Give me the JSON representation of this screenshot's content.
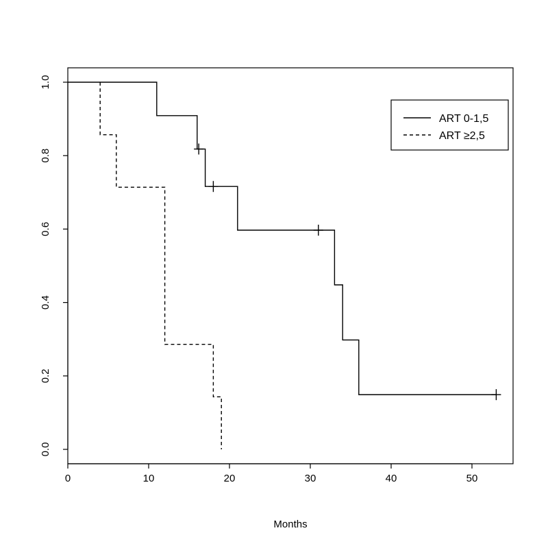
{
  "chart_data": {
    "type": "line",
    "subtype": "kaplan-meier step",
    "title": "",
    "xlabel": "Months",
    "ylabel": "",
    "xlim": [
      0,
      55
    ],
    "ylim": [
      -0.04,
      1.04
    ],
    "x_ticks": [
      0,
      10,
      20,
      30,
      40,
      50
    ],
    "y_ticks": [
      0.0,
      0.2,
      0.4,
      0.6,
      0.8,
      1.0
    ],
    "x_tick_labels": [
      "0",
      "10",
      "20",
      "30",
      "40",
      "50"
    ],
    "y_tick_labels": [
      "0.0",
      "0.2",
      "0.4",
      "0.6",
      "0.8",
      "1.0"
    ],
    "grid": false,
    "legend_position": "top-right",
    "series": [
      {
        "name": "ART 0-1,5",
        "line_style": "solid",
        "color": "#000000",
        "steps": [
          [
            0,
            1.0
          ],
          [
            11,
            0.909
          ],
          [
            16,
            0.818
          ],
          [
            17,
            0.716
          ],
          [
            21,
            0.597
          ],
          [
            33,
            0.448
          ],
          [
            34,
            0.298
          ],
          [
            36,
            0.149
          ]
        ],
        "end_x": 53,
        "censored": [
          [
            16.2,
            0.818
          ],
          [
            18,
            0.716
          ],
          [
            31,
            0.597
          ],
          [
            53,
            0.149
          ]
        ]
      },
      {
        "name": "ART ≥2,5",
        "line_style": "dashed",
        "color": "#000000",
        "steps": [
          [
            4,
            1.0
          ],
          [
            4,
            0.857
          ],
          [
            6,
            0.714
          ],
          [
            12,
            0.286
          ],
          [
            18,
            0.143
          ],
          [
            19,
            0.0
          ]
        ],
        "start_x": 4,
        "end_x": 19,
        "censored": []
      }
    ]
  }
}
